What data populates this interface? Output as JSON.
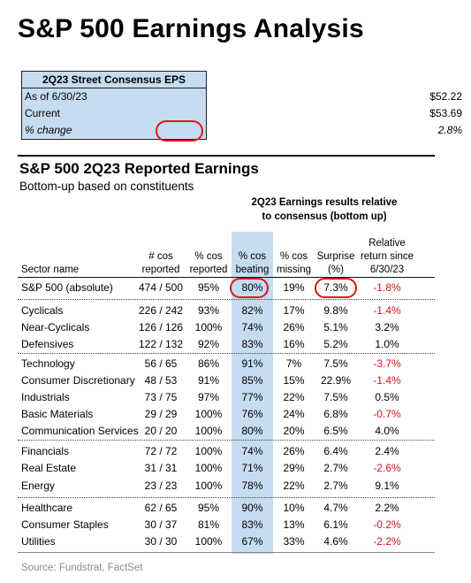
{
  "title": "S&P 500 Earnings Analysis",
  "consensus": {
    "header": "2Q23 Street Consensus EPS",
    "rows": [
      {
        "label": "As of 6/30/23",
        "value": "$52.22"
      },
      {
        "label": "Current",
        "value": "$53.69"
      },
      {
        "label": "% change",
        "value": "2.8%"
      }
    ]
  },
  "section": {
    "title": "S&P 500 2Q23 Reported Earnings",
    "subtitle": "Bottom-up based on constituents",
    "group_header_line1": "2Q23 Earnings results relative",
    "group_header_line2": "to consensus (bottom up)"
  },
  "columns": {
    "sector": "Sector name",
    "reported_1": "# cos",
    "reported_2": "reported",
    "pct_reported_1": "% cos",
    "pct_reported_2": "reported",
    "beating_1": "% cos",
    "beating_2": "beating",
    "missing_1": "% cos",
    "missing_2": "missing",
    "surprise_1": "Surprise",
    "surprise_2": "(%)",
    "return_1": "Relative",
    "return_2": "return since",
    "return_3": "6/30/23"
  },
  "rows": [
    {
      "sector": "S&P 500 (absolute)",
      "reported": "474 / 500",
      "pct_reported": "95%",
      "beating": "80%",
      "missing": "19%",
      "surprise": "7.3%",
      "rel_return": "-1.8%"
    },
    {
      "sector": "Cyclicals",
      "reported": "226 / 242",
      "pct_reported": "93%",
      "beating": "82%",
      "missing": "17%",
      "surprise": "9.8%",
      "rel_return": "-1.4%"
    },
    {
      "sector": "Near-Cyclicals",
      "reported": "126 / 126",
      "pct_reported": "100%",
      "beating": "74%",
      "missing": "26%",
      "surprise": "5.1%",
      "rel_return": "3.2%"
    },
    {
      "sector": "Defensives",
      "reported": "122 / 132",
      "pct_reported": "92%",
      "beating": "83%",
      "missing": "16%",
      "surprise": "5.2%",
      "rel_return": "1.0%"
    },
    {
      "sector": "Technology",
      "reported": "56 / 65",
      "pct_reported": "86%",
      "beating": "91%",
      "missing": "7%",
      "surprise": "7.5%",
      "rel_return": "-3.7%"
    },
    {
      "sector": "Consumer Discretionary",
      "reported": "48 / 53",
      "pct_reported": "91%",
      "beating": "85%",
      "missing": "15%",
      "surprise": "22.9%",
      "rel_return": "-1.4%"
    },
    {
      "sector": "Industrials",
      "reported": "73 / 75",
      "pct_reported": "97%",
      "beating": "77%",
      "missing": "22%",
      "surprise": "7.5%",
      "rel_return": "0.5%"
    },
    {
      "sector": "Basic Materials",
      "reported": "29 / 29",
      "pct_reported": "100%",
      "beating": "76%",
      "missing": "24%",
      "surprise": "6.8%",
      "rel_return": "-0.7%"
    },
    {
      "sector": "Communication Services",
      "reported": "20 / 20",
      "pct_reported": "100%",
      "beating": "80%",
      "missing": "20%",
      "surprise": "6.5%",
      "rel_return": "4.0%"
    },
    {
      "sector": "Financials",
      "reported": "72 / 72",
      "pct_reported": "100%",
      "beating": "74%",
      "missing": "26%",
      "surprise": "6.4%",
      "rel_return": "2.4%"
    },
    {
      "sector": "Real Estate",
      "reported": "31 / 31",
      "pct_reported": "100%",
      "beating": "71%",
      "missing": "29%",
      "surprise": "2.7%",
      "rel_return": "-2.6%"
    },
    {
      "sector": "Energy",
      "reported": "23 / 23",
      "pct_reported": "100%",
      "beating": "78%",
      "missing": "22%",
      "surprise": "2.7%",
      "rel_return": "9.1%"
    },
    {
      "sector": "Healthcare",
      "reported": "62 / 65",
      "pct_reported": "95%",
      "beating": "90%",
      "missing": "10%",
      "surprise": "4.7%",
      "rel_return": "2.2%"
    },
    {
      "sector": "Consumer Staples",
      "reported": "30 / 37",
      "pct_reported": "81%",
      "beating": "83%",
      "missing": "13%",
      "surprise": "6.1%",
      "rel_return": "-0.2%"
    },
    {
      "sector": "Utilities",
      "reported": "30 / 30",
      "pct_reported": "100%",
      "beating": "67%",
      "missing": "33%",
      "surprise": "4.6%",
      "rel_return": "-2.2%"
    }
  ],
  "source": "Source: Fundstrat, FactSet",
  "colors": {
    "highlight": "#c6dcf0",
    "negative": "#d0161b",
    "circle": "#e0161b"
  }
}
